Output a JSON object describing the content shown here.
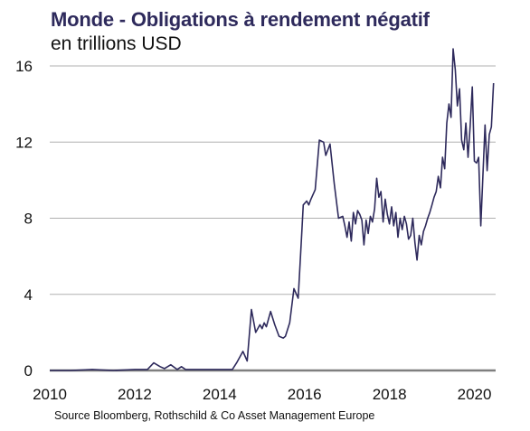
{
  "header": {
    "title": "Monde - Obligations à rendement négatif",
    "subtitle": "en trillions USD"
  },
  "footer": {
    "source": "Source Bloomberg, Rothschild & Co Asset Management Europe"
  },
  "colors": {
    "series": "#2e2a5c",
    "grid": "#b0b0b0",
    "axis": "#7f7f7f",
    "title": "#2e2a5c"
  },
  "chart_data": {
    "type": "line",
    "title": "Monde - Obligations à rendement négatif",
    "subtitle": "en trillions USD",
    "ylim": [
      0,
      16
    ],
    "xlim": [
      2010,
      2020.5
    ],
    "yticks": [
      0,
      4,
      8,
      12,
      16
    ],
    "xticks": [
      2010,
      2012,
      2014,
      2016,
      2018,
      2020
    ],
    "grid": "horizontal",
    "legend": "none",
    "series": [
      {
        "x": [
          2010.0,
          2010.5,
          2011.0,
          2011.5,
          2012.0,
          2012.3,
          2012.45,
          2012.6,
          2012.7,
          2012.85,
          2013.0,
          2013.1,
          2013.2,
          2013.5,
          2014.0,
          2014.3,
          2014.4,
          2014.55,
          2014.65,
          2014.75,
          2014.85,
          2014.95,
          2015.0,
          2015.05,
          2015.1,
          2015.2,
          2015.3,
          2015.4,
          2015.5,
          2015.55,
          2015.65,
          2015.75,
          2015.85,
          2015.93,
          2015.97,
          2016.05,
          2016.1,
          2016.15,
          2016.25,
          2016.35,
          2016.45,
          2016.5,
          2016.6,
          2016.7,
          2016.8,
          2016.9,
          2016.95,
          2017.0,
          2017.05,
          2017.1,
          2017.15,
          2017.2,
          2017.25,
          2017.3,
          2017.35,
          2017.4,
          2017.45,
          2017.5,
          2017.55,
          2017.6,
          2017.65,
          2017.7,
          2017.75,
          2017.8,
          2017.85,
          2017.9,
          2017.95,
          2018.0,
          2018.05,
          2018.1,
          2018.15,
          2018.2,
          2018.25,
          2018.3,
          2018.35,
          2018.4,
          2018.45,
          2018.5,
          2018.55,
          2018.6,
          2018.65,
          2018.7,
          2018.75,
          2018.8,
          2018.85,
          2018.9,
          2018.95,
          2019.0,
          2019.05,
          2019.1,
          2019.15,
          2019.2,
          2019.25,
          2019.3,
          2019.35,
          2019.4,
          2019.45,
          2019.5,
          2019.55,
          2019.6,
          2019.65,
          2019.7,
          2019.75,
          2019.8,
          2019.85,
          2019.9,
          2019.95,
          2020.0,
          2020.05,
          2020.1,
          2020.15,
          2020.2,
          2020.25,
          2020.3,
          2020.35,
          2020.4,
          2020.45
        ],
        "values": [
          0.0,
          0.0,
          0.05,
          0.0,
          0.05,
          0.05,
          0.4,
          0.2,
          0.1,
          0.3,
          0.05,
          0.2,
          0.05,
          0.05,
          0.05,
          0.05,
          0.4,
          1.0,
          0.5,
          3.2,
          2.0,
          2.4,
          2.2,
          2.5,
          2.3,
          3.1,
          2.4,
          1.8,
          1.7,
          1.8,
          2.5,
          4.3,
          3.8,
          7.0,
          8.7,
          8.9,
          8.7,
          9.0,
          9.5,
          12.1,
          12.0,
          11.3,
          11.9,
          9.8,
          8.0,
          8.1,
          7.6,
          7.0,
          7.8,
          6.8,
          8.3,
          7.7,
          8.4,
          8.2,
          7.9,
          6.6,
          7.9,
          7.2,
          8.1,
          7.8,
          8.5,
          10.1,
          9.1,
          9.4,
          7.8,
          9.0,
          8.2,
          7.7,
          8.6,
          7.6,
          8.3,
          7.0,
          8.0,
          7.4,
          8.1,
          7.7,
          6.9,
          7.1,
          8.0,
          6.7,
          5.8,
          7.1,
          6.6,
          7.3,
          7.6,
          8.0,
          8.3,
          8.7,
          9.1,
          9.4,
          10.2,
          9.6,
          11.2,
          10.6,
          13.0,
          14.0,
          13.3,
          16.9,
          15.8,
          13.9,
          14.8,
          12.1,
          11.6,
          13.0,
          11.2,
          12.8,
          14.9,
          11.0,
          10.9,
          11.2,
          7.6,
          10.2,
          12.9,
          10.5,
          12.4,
          12.8,
          15.1
        ]
      }
    ]
  }
}
